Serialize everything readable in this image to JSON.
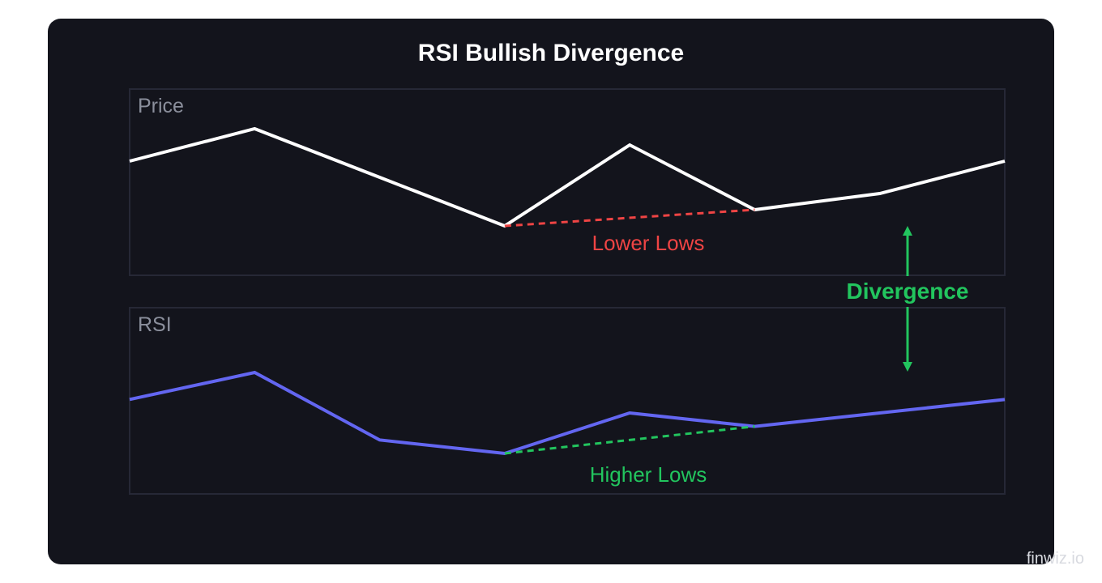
{
  "title": "RSI Bullish Divergence",
  "panels": {
    "price": {
      "label": "Price"
    },
    "rsi": {
      "label": "RSI"
    }
  },
  "annotations": {
    "price_trend": "Lower Lows",
    "rsi_trend": "Higher Lows",
    "divergence": "Divergence"
  },
  "colors": {
    "background": "#13141c",
    "panel_border": "#262836",
    "price_line": "#ffffff",
    "rsi_line": "#6366f1",
    "lower_lows": "#ef4444",
    "higher_lows": "#22c55e",
    "divergence": "#22c55e",
    "muted_label": "#8b8f9c"
  },
  "series": {
    "price": [
      6,
      8,
      5,
      2,
      7,
      3,
      4,
      6
    ],
    "rsi": [
      6,
      8,
      3,
      2,
      5,
      4,
      5,
      6
    ]
  },
  "watermark": "finwiz.io"
}
